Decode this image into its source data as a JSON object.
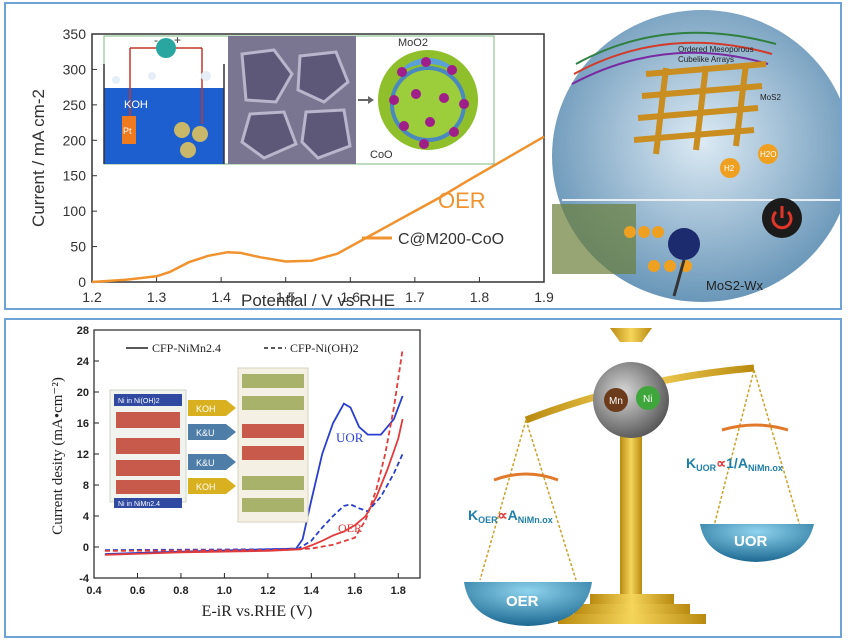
{
  "chart_data": [
    {
      "type": "line",
      "title": "",
      "xlabel": "Potential / V vs RHE",
      "ylabel": "Current / mA cm-2",
      "xlim": [
        1.2,
        1.9
      ],
      "ylim": [
        0,
        350
      ],
      "xticks": [
        "1.2",
        "1.3",
        "1.4",
        "1.5",
        "1.6",
        "1.7",
        "1.8",
        "1.9"
      ],
      "yticks": [
        "0",
        "50",
        "100",
        "150",
        "200",
        "250",
        "300",
        "350"
      ],
      "annotation": "OER",
      "legend": {
        "position": "lower-right",
        "label": "C@M200-CoO"
      },
      "series": [
        {
          "name": "C@M200-CoO",
          "color": "#f0922e",
          "x": [
            1.2,
            1.25,
            1.3,
            1.32,
            1.35,
            1.38,
            1.41,
            1.43,
            1.46,
            1.5,
            1.54,
            1.58,
            1.62,
            1.66,
            1.7,
            1.74,
            1.78,
            1.82,
            1.86,
            1.9
          ],
          "y": [
            0,
            3,
            8,
            14,
            28,
            37,
            42,
            41,
            35,
            29,
            30,
            40,
            60,
            80,
            100,
            120,
            142,
            163,
            184,
            205
          ]
        }
      ]
    },
    {
      "type": "line",
      "title": "",
      "xlabel": "E-iR vs.RHE (V)",
      "ylabel": "Current desity (mA•cm⁻²)",
      "xlim": [
        0.4,
        1.9
      ],
      "ylim": [
        -4,
        28
      ],
      "xticks": [
        "0.4",
        "0.6",
        "0.8",
        "1.0",
        "1.2",
        "1.4",
        "1.6",
        "1.8"
      ],
      "yticks": [
        "-4",
        "0",
        "4",
        "8",
        "12",
        "16",
        "20",
        "24",
        "28"
      ],
      "legend": {
        "position": "top",
        "labels": [
          "CFP-NiMn2.4",
          "CFP-Ni(OH)2"
        ]
      },
      "annotations": [
        "UOR",
        "OER"
      ],
      "series": [
        {
          "name": "CFP-NiMn2.4 UOR",
          "color": "#2a3fcf",
          "style": "solid",
          "x": [
            0.45,
            0.8,
            1.2,
            1.33,
            1.36,
            1.4,
            1.45,
            1.5,
            1.55,
            1.58,
            1.62,
            1.66,
            1.72,
            1.78,
            1.82
          ],
          "y": [
            -0.9,
            -0.6,
            -0.3,
            -0.2,
            1.0,
            6,
            12,
            16,
            18.5,
            18,
            15.5,
            14.5,
            14.5,
            16.5,
            19.5
          ]
        },
        {
          "name": "CFP-NiMn2.4 OER",
          "color": "#e23b3b",
          "style": "solid",
          "x": [
            0.45,
            0.8,
            1.2,
            1.35,
            1.4,
            1.45,
            1.5,
            1.55,
            1.6,
            1.65,
            1.7,
            1.75,
            1.8,
            1.82
          ],
          "y": [
            -1.0,
            -0.7,
            -0.5,
            -0.3,
            0.2,
            0.8,
            1.5,
            2.0,
            2.8,
            4.0,
            6.5,
            10,
            14,
            16.5
          ]
        },
        {
          "name": "CFP-Ni(OH)2 UOR",
          "color": "#2a3fcf",
          "style": "dashed",
          "x": [
            0.45,
            1.2,
            1.34,
            1.4,
            1.45,
            1.5,
            1.55,
            1.58,
            1.62,
            1.66,
            1.72,
            1.78,
            1.82
          ],
          "y": [
            -0.4,
            -0.3,
            -0.2,
            0.8,
            2.5,
            4.0,
            5.3,
            5.5,
            5.0,
            4.6,
            6.5,
            9.5,
            12
          ]
        },
        {
          "name": "CFP-Ni(OH)2 OER",
          "color": "#e23b3b",
          "style": "dashed",
          "x": [
            0.45,
            1.2,
            1.4,
            1.5,
            1.6,
            1.65,
            1.7,
            1.74,
            1.78,
            1.82
          ],
          "y": [
            -0.5,
            -0.4,
            -0.2,
            0.3,
            1.2,
            3.5,
            7.5,
            12,
            18,
            25.5
          ]
        }
      ]
    }
  ],
  "top_panel": {
    "inset_labels": {
      "electrolyte": "KOH",
      "pt": "Pt",
      "minus": "-",
      "plus": "+",
      "moo2": "MoO2",
      "coo": "CoO"
    },
    "illustration": {
      "title_line1": "Ordered Mesoporous",
      "title_line2": "Cubelike Arrays",
      "mo_label": "MoS2",
      "product": "MoS2-Wx",
      "h2": "H2",
      "h2o": "H2O"
    }
  },
  "bottom_panel": {
    "schematic": {
      "top_label": "Ni in Ni(OH)2",
      "bottom_label": "Ni in NiMn2.4",
      "arrows": [
        "KOH",
        "K&U",
        "K&U",
        "KOH"
      ]
    },
    "balance": {
      "mn": "Mn",
      "ni": "Ni",
      "left_pan": "OER",
      "right_pan": "UOR",
      "left_k": "K",
      "left_k_sub": "OER",
      "left_prop": "∝",
      "left_a": "A",
      "left_a_sub": "NiMn.ox",
      "right_k": "K",
      "right_k_sub": "UOR",
      "right_prop": "∝",
      "right_a": "1/A",
      "right_a_sub": "NiMn.ox"
    }
  },
  "colors": {
    "orange": "#f0922e",
    "blue": "#2a3fcf",
    "red": "#e23b3b",
    "gold": "#e0b21d",
    "teal": "#1f7fa8"
  }
}
